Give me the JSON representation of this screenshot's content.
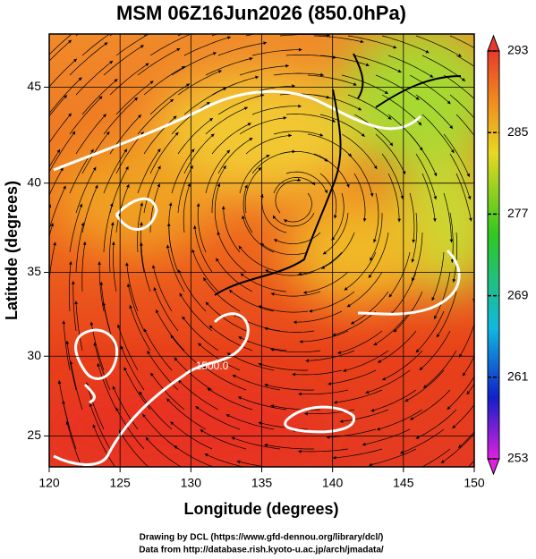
{
  "title": "MSM 06Z16Jun2026 (850.0hPa)",
  "x_axis": {
    "label": "Longitude (degrees)",
    "lim": [
      120,
      150
    ],
    "ticks": [
      120,
      125,
      130,
      135,
      140,
      145,
      150
    ]
  },
  "y_axis": {
    "label": "Latitude  (degrees)",
    "lim": [
      23,
      47.6
    ],
    "ticks": [
      25,
      30,
      35,
      40,
      45
    ],
    "projection": "mercator"
  },
  "colorbar": {
    "lim": [
      253,
      293
    ],
    "ticks": [
      253,
      261,
      269,
      277,
      285,
      293
    ]
  },
  "contour_label": "1500.0",
  "footer": [
    "Drawing by DCL (https://www.gfd-dennou.org/library/dcl/)",
    "Data from http://database.rish.kyoto-u.ac.jp/arch/jmadata/"
  ]
}
